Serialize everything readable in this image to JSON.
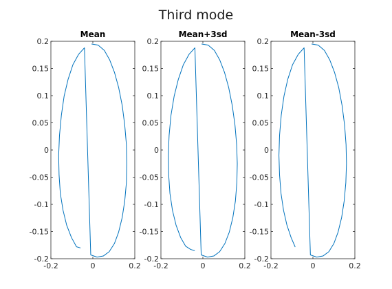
{
  "figure": {
    "title": "Third mode"
  },
  "chart_data": [
    {
      "type": "line",
      "title": "Mean",
      "xlabel": "",
      "ylabel": "",
      "xlim": [
        -0.2,
        0.2
      ],
      "ylim": [
        -0.2,
        0.2
      ],
      "xticks": [
        -0.2,
        0,
        0.2
      ],
      "xtick_labels": [
        "-0.2",
        "0",
        "0.2"
      ],
      "yticks": [
        0.2,
        0.15,
        0.1,
        0.05,
        0,
        -0.05,
        -0.1,
        -0.15,
        -0.2
      ],
      "ytick_labels": [
        "0.2",
        "0.15",
        "0.1",
        "0.05",
        "0",
        "-0.05",
        "-0.1",
        "-0.15",
        "-0.2"
      ],
      "grid": false,
      "line_color": "#0072bd",
      "series": [
        {
          "x": [
            -0.005,
            0.025,
            0.055,
            0.08,
            0.103,
            0.123,
            0.14,
            0.152,
            0.16,
            0.162,
            0.16,
            0.152,
            0.14,
            0.123,
            0.103,
            0.078,
            0.05,
            0.02,
            -0.01,
            -0.04,
            -0.068,
            -0.095,
            -0.118,
            -0.137,
            -0.15,
            -0.159,
            -0.163,
            -0.161,
            -0.155,
            -0.142,
            -0.125,
            -0.102,
            -0.078,
            -0.06
          ],
          "y": [
            0.195,
            0.193,
            0.183,
            0.166,
            0.143,
            0.115,
            0.082,
            0.046,
            0.01,
            -0.025,
            -0.06,
            -0.094,
            -0.124,
            -0.151,
            -0.172,
            -0.187,
            -0.195,
            -0.197,
            -0.193,
            0.188,
            0.176,
            0.157,
            0.13,
            0.099,
            0.064,
            0.027,
            -0.01,
            -0.046,
            -0.08,
            -0.111,
            -0.138,
            -0.161,
            -0.178,
            -0.18
          ]
        }
      ]
    },
    {
      "type": "line",
      "title": "Mean+3sd",
      "xlabel": "",
      "ylabel": "",
      "xlim": [
        -0.2,
        0.2
      ],
      "ylim": [
        -0.2,
        0.2
      ],
      "xticks": [
        -0.2,
        0,
        0.2
      ],
      "xtick_labels": [
        "-0.2",
        "0",
        "0.2"
      ],
      "yticks": [
        0.2,
        0.15,
        0.1,
        0.05,
        0,
        -0.05,
        -0.1,
        -0.15,
        -0.2
      ],
      "ytick_labels": [
        "0.2",
        "0.15",
        "0.1",
        "0.05",
        "0",
        "-0.05",
        "-0.1",
        "-0.15",
        "-0.2"
      ],
      "grid": false,
      "line_color": "#0072bd",
      "series": [
        {
          "x": [
            -0.005,
            0.025,
            0.055,
            0.08,
            0.103,
            0.123,
            0.14,
            0.153,
            0.161,
            0.164,
            0.162,
            0.155,
            0.143,
            0.126,
            0.105,
            0.08,
            0.052,
            0.022,
            -0.008,
            -0.038,
            -0.066,
            -0.093,
            -0.117,
            -0.137,
            -0.152,
            -0.161,
            -0.165,
            -0.163,
            -0.157,
            -0.145,
            -0.128,
            -0.106,
            -0.082,
            -0.058,
            -0.04
          ],
          "y": [
            0.195,
            0.193,
            0.183,
            0.166,
            0.143,
            0.115,
            0.082,
            0.046,
            0.01,
            -0.025,
            -0.06,
            -0.094,
            -0.124,
            -0.151,
            -0.172,
            -0.187,
            -0.195,
            -0.197,
            -0.193,
            0.188,
            0.176,
            0.157,
            0.13,
            0.099,
            0.064,
            0.027,
            -0.01,
            -0.046,
            -0.08,
            -0.111,
            -0.138,
            -0.161,
            -0.177,
            -0.183,
            -0.185
          ]
        }
      ]
    },
    {
      "type": "line",
      "title": "Mean-3sd",
      "xlabel": "",
      "ylabel": "",
      "xlim": [
        -0.2,
        0.2
      ],
      "ylim": [
        -0.2,
        0.2
      ],
      "xticks": [
        -0.2,
        0,
        0.2
      ],
      "xtick_labels": [
        "-0.2",
        "0",
        "0.2"
      ],
      "yticks": [
        0.2,
        0.15,
        0.1,
        0.05,
        0,
        -0.05,
        -0.1,
        -0.15,
        -0.2
      ],
      "ytick_labels": [
        "0.2",
        "0.15",
        "0.1",
        "0.05",
        "0",
        "-0.05",
        "-0.1",
        "-0.15",
        "-0.2"
      ],
      "grid": false,
      "line_color": "#0072bd",
      "series": [
        {
          "x": [
            -0.005,
            0.025,
            0.055,
            0.08,
            0.103,
            0.123,
            0.139,
            0.151,
            0.158,
            0.16,
            0.157,
            0.149,
            0.137,
            0.12,
            0.1,
            0.076,
            0.048,
            0.018,
            -0.012,
            -0.042,
            -0.07,
            -0.097,
            -0.12,
            -0.138,
            -0.151,
            -0.159,
            -0.162,
            -0.159,
            -0.152,
            -0.14,
            -0.124,
            -0.104,
            -0.085
          ],
          "y": [
            0.195,
            0.193,
            0.183,
            0.166,
            0.143,
            0.115,
            0.082,
            0.046,
            0.01,
            -0.025,
            -0.06,
            -0.094,
            -0.124,
            -0.151,
            -0.172,
            -0.187,
            -0.195,
            -0.197,
            -0.193,
            0.188,
            0.176,
            0.157,
            0.13,
            0.099,
            0.064,
            0.027,
            -0.01,
            -0.046,
            -0.08,
            -0.111,
            -0.138,
            -0.161,
            -0.178
          ]
        }
      ]
    }
  ]
}
